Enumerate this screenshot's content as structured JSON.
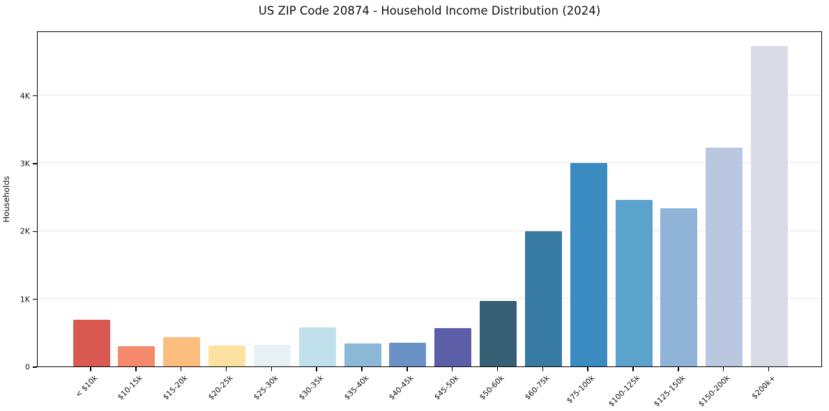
{
  "chart_data": {
    "type": "bar",
    "title": "US ZIP Code 20874 - Household Income Distribution (2024)",
    "xlabel": "",
    "ylabel": "Households",
    "categories": [
      "< $10k",
      "$10-15k",
      "$15-20k",
      "$20-25k",
      "$25-30k",
      "$30-35k",
      "$35-40k",
      "$40-45k",
      "$45-50k",
      "$50-60k",
      "$60-75k",
      "$75-100k",
      "$100-125k",
      "$125-150k",
      "$150-200k",
      "$200k+"
    ],
    "values": [
      690,
      300,
      430,
      310,
      320,
      575,
      335,
      350,
      570,
      970,
      1990,
      3000,
      2450,
      2330,
      3220,
      4720
    ],
    "bar_colors": [
      "#d95850",
      "#f4896b",
      "#fcbd7e",
      "#fde1a0",
      "#e6f2f6",
      "#c0e1eb",
      "#8cb8d8",
      "#6b92c6",
      "#5c5fa8",
      "#365f75",
      "#377ba3",
      "#3a8bbf",
      "#5ba3cc",
      "#8fb4d7",
      "#b9c8e0",
      "#d9dbe7"
    ],
    "ylim": [
      0,
      4950
    ],
    "yticks": [
      {
        "value": 0,
        "label": "0"
      },
      {
        "value": 1000,
        "label": "1K"
      },
      {
        "value": 2000,
        "label": "2K"
      },
      {
        "value": 3000,
        "label": "3K"
      },
      {
        "value": 4000,
        "label": "4K"
      }
    ],
    "grid": "horizontal",
    "legend": "none",
    "background_color": "#ffffff",
    "spine_color": "#000000",
    "gridline_color": "#e7e7e7"
  }
}
